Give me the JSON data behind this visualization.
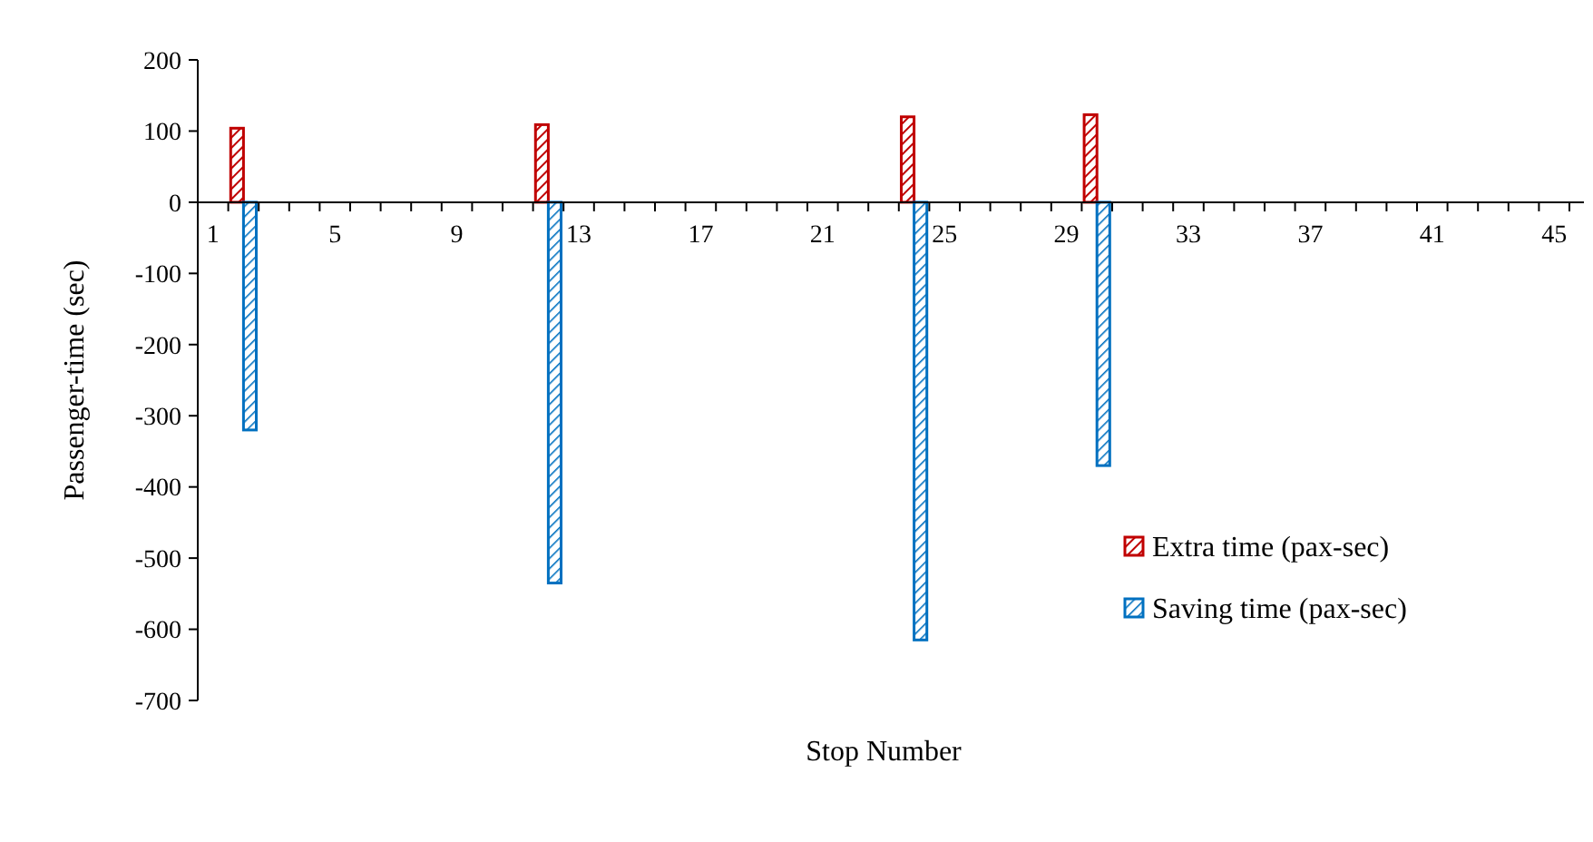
{
  "chart_data": {
    "type": "bar",
    "xlabel": "Stop Number",
    "ylabel": "Passenger-time (sec)",
    "categories": [
      "1",
      null,
      null,
      null,
      "5",
      null,
      null,
      null,
      "9",
      null,
      null,
      null,
      "13",
      null,
      null,
      null,
      "17",
      null,
      null,
      null,
      "21",
      null,
      null,
      null,
      "25",
      null,
      null,
      null,
      "29",
      null,
      null,
      null,
      "33",
      null,
      null,
      null,
      "37",
      null,
      null,
      null,
      "41",
      null,
      null,
      null,
      "45"
    ],
    "series": [
      {
        "name": "Extra time (pax-sec)",
        "color": "#c00000",
        "values": [
          null,
          104,
          null,
          null,
          null,
          null,
          null,
          null,
          null,
          null,
          null,
          109,
          null,
          null,
          null,
          null,
          null,
          null,
          null,
          null,
          null,
          null,
          null,
          120,
          null,
          null,
          null,
          null,
          null,
          123,
          null,
          null,
          null,
          null,
          null,
          null,
          null,
          null,
          null,
          null,
          null,
          null,
          null,
          null,
          null
        ]
      },
      {
        "name": "Saving time (pax-sec)",
        "color": "#0070c0",
        "values": [
          null,
          -320,
          null,
          null,
          null,
          null,
          null,
          null,
          null,
          null,
          null,
          -535,
          null,
          null,
          null,
          null,
          null,
          null,
          null,
          null,
          null,
          null,
          null,
          -615,
          null,
          null,
          null,
          null,
          null,
          -370,
          null,
          null,
          null,
          null,
          null,
          null,
          null,
          null,
          null,
          null,
          null,
          null,
          null,
          null,
          null
        ]
      }
    ],
    "ylim": [
      -700,
      200
    ],
    "yticks": [
      -700,
      -600,
      -500,
      -400,
      -300,
      -200,
      -100,
      0,
      100,
      200
    ],
    "grid": false,
    "legend": "right"
  }
}
